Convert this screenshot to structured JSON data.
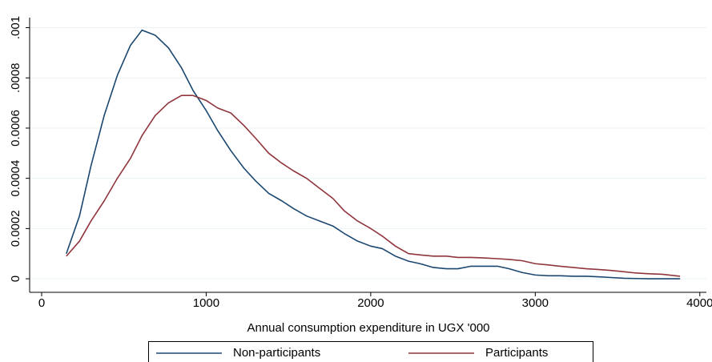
{
  "chart_data": {
    "type": "line",
    "xlabel": "Annual consumption expenditure in UGX '000",
    "x": [
      150,
      230,
      300,
      380,
      460,
      540,
      610,
      690,
      770,
      850,
      920,
      1000,
      1070,
      1150,
      1230,
      1300,
      1380,
      1460,
      1530,
      1610,
      1690,
      1770,
      1840,
      1920,
      2000,
      2070,
      2150,
      2230,
      2300,
      2380,
      2460,
      2530,
      2610,
      2690,
      2770,
      2840,
      2920,
      3000,
      3080,
      3150,
      3230,
      3310,
      3380,
      3460,
      3540,
      3610,
      3690,
      3770,
      3880
    ],
    "series": [
      {
        "name": "Non-participants",
        "color": "#1a476f",
        "values": [
          0.0001,
          0.00025,
          0.00045,
          0.00065,
          0.00081,
          0.00093,
          0.00099,
          0.00097,
          0.00092,
          0.00084,
          0.00075,
          0.00067,
          0.00059,
          0.00051,
          0.00044,
          0.00039,
          0.00034,
          0.00031,
          0.00028,
          0.00025,
          0.00023,
          0.00021,
          0.00018,
          0.00015,
          0.00013,
          0.00012,
          9e-05,
          7e-05,
          6e-05,
          4.5e-05,
          4e-05,
          4e-05,
          5e-05,
          5e-05,
          5e-05,
          4e-05,
          2.5e-05,
          1.5e-05,
          1.2e-05,
          1.2e-05,
          1e-05,
          1e-05,
          8e-06,
          5e-06,
          2e-06,
          1e-06,
          0,
          0,
          0
        ]
      },
      {
        "name": "Participants",
        "color": "#90353b",
        "values": [
          9e-05,
          0.00015,
          0.00023,
          0.00031,
          0.0004,
          0.00048,
          0.00057,
          0.00065,
          0.0007,
          0.00073,
          0.00073,
          0.00071,
          0.00068,
          0.00066,
          0.00061,
          0.00056,
          0.0005,
          0.00046,
          0.00043,
          0.0004,
          0.00036,
          0.00032,
          0.00027,
          0.00023,
          0.0002,
          0.00017,
          0.00013,
          0.0001,
          9.5e-05,
          9e-05,
          9e-05,
          8.5e-05,
          8.5e-05,
          8.3e-05,
          8e-05,
          7.7e-05,
          7.2e-05,
          6e-05,
          5.5e-05,
          5e-05,
          4.5e-05,
          4e-05,
          3.7e-05,
          3.3e-05,
          2.8e-05,
          2.3e-05,
          2e-05,
          1.8e-05,
          1e-05
        ]
      }
    ],
    "xlim": [
      -73,
      4040
    ],
    "xticks": [
      0,
      1000,
      2000,
      3000,
      4000
    ],
    "ylim": [
      -5.4e-05,
      0.00104
    ],
    "yticks": [
      0,
      0.0002,
      0.0004,
      0.0006,
      {
        "value": 0.0008,
        "label": ".0008"
      },
      {
        "value": 0.001,
        "label": ".001"
      }
    ],
    "grid": true
  }
}
